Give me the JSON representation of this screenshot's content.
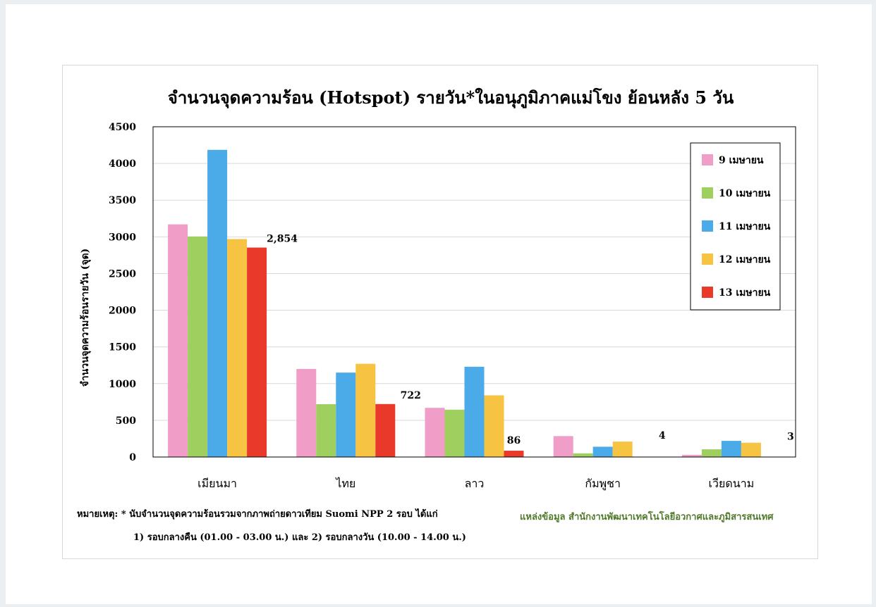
{
  "chart_data": {
    "type": "bar",
    "title": "จำนวนจุดความร้อน (Hotspot) รายวัน*ในอนุภูมิภาคแม่โขง ย้อนหลัง 5 วัน",
    "ylabel": "จำนวนจุดความร้อนรายวัน (จุด)",
    "xlabel": "",
    "categories": [
      "เมียนมา",
      "ไทย",
      "ลาว",
      "กัมพูชา",
      "เวียดนาม"
    ],
    "ylim": [
      0,
      4500
    ],
    "yticks": [
      "0",
      "500",
      "1000",
      "1500",
      "2000",
      "2500",
      "3000",
      "3500",
      "4000",
      "4500"
    ],
    "grid": true,
    "legend_position": "top-right",
    "series": [
      {
        "name": "9 เมษายน",
        "color": "#f09ec8",
        "values": [
          3170,
          1200,
          670,
          285,
          30
        ]
      },
      {
        "name": "10 เมษายน",
        "color": "#9fcf5f",
        "values": [
          3005,
          720,
          645,
          50,
          105
        ]
      },
      {
        "name": "11 เมษายน",
        "color": "#4baae8",
        "values": [
          4185,
          1150,
          1230,
          140,
          220
        ]
      },
      {
        "name": "12 เมษายน",
        "color": "#f7c343",
        "values": [
          2970,
          1270,
          840,
          210,
          195
        ]
      },
      {
        "name": "13 เมษายน",
        "color": "#e8392a",
        "values": [
          2854,
          722,
          86,
          4,
          3
        ]
      }
    ],
    "data_labels": [
      "2,854",
      "722",
      "86",
      "4",
      "3"
    ]
  },
  "notes": {
    "line1": "หมายเหตุ: * นับจำนวนจุดความร้อนรวมจากภาพถ่ายดาวเทียม Suomi NPP 2 รอบ ได้แก่",
    "line2": "1) รอบกลางคืน (01.00 - 03.00 น.)  และ 2) รอบกลางวัน (10.00 - 14.00 น.)"
  },
  "source": {
    "text": "แหล่งข้อมูล สำนักงานพัฒนาเทคโนโลยีอวกาศและภูมิสารสนเทศ",
    "color": "#4f7a2a"
  }
}
